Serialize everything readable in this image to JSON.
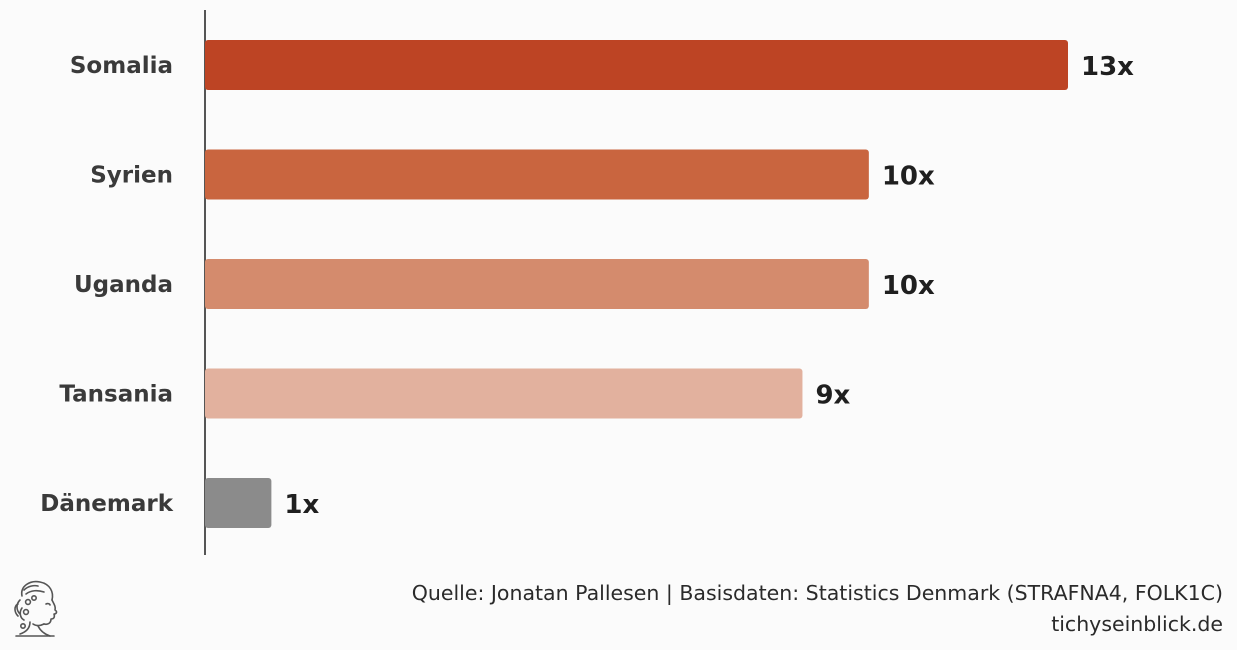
{
  "chart_data": {
    "type": "bar",
    "orientation": "horizontal",
    "categories": [
      "Somalia",
      "Syrien",
      "Uganda",
      "Tansania",
      "Dänemark"
    ],
    "values": [
      13,
      10,
      10,
      9,
      1
    ],
    "value_labels": [
      "13x",
      "10x",
      "10x",
      "9x",
      "1x"
    ],
    "colors": [
      "#bd4424",
      "#c9653f",
      "#d48b6d",
      "#e2b19e",
      "#8b8b8b"
    ],
    "xlim": [
      0,
      13
    ],
    "grid": false,
    "legend": "none"
  },
  "footer": {
    "source": "Quelle: Jonatan Pallesen | Basisdaten: Statistics Denmark (STRAFNA4, FOLK1C)",
    "site": "tichyseinblick.de"
  },
  "logo": {
    "icon": "greek-head-logo-icon"
  }
}
